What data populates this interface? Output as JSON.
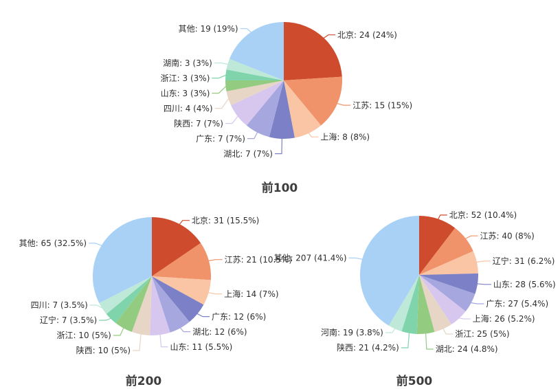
{
  "figure": {
    "background": "#ffffff",
    "label_color": "#2e2e2e",
    "title_color": "#3d3d3d"
  },
  "palette": [
    "#ce4b2d",
    "#f0926a",
    "#f9c5a4",
    "#7b80c7",
    "#a6a7de",
    "#d7c7ee",
    "#e7d5c6",
    "#93cc80",
    "#7fd4ac",
    "#bee9d8",
    "#a8d1f5"
  ],
  "chart_data": [
    {
      "type": "pie",
      "title": "前100",
      "total": 100,
      "label_format": "{name}: {value} ({pct})",
      "legend": false,
      "slices": [
        {
          "name": "北京",
          "value": 24,
          "pct": "24%"
        },
        {
          "name": "江苏",
          "value": 15,
          "pct": "15%"
        },
        {
          "name": "上海",
          "value": 8,
          "pct": "8%"
        },
        {
          "name": "湖北",
          "value": 7,
          "pct": "7%"
        },
        {
          "name": "广东",
          "value": 7,
          "pct": "7%"
        },
        {
          "name": "陕西",
          "value": 7,
          "pct": "7%"
        },
        {
          "name": "四川",
          "value": 4,
          "pct": "4%"
        },
        {
          "name": "山东",
          "value": 3,
          "pct": "3%"
        },
        {
          "name": "浙江",
          "value": 3,
          "pct": "3%"
        },
        {
          "name": "湖南",
          "value": 3,
          "pct": "3%"
        },
        {
          "name": "其他",
          "value": 19,
          "pct": "19%"
        }
      ]
    },
    {
      "type": "pie",
      "title": "前200",
      "total": 200,
      "label_format": "{name}: {value} ({pct})",
      "legend": false,
      "slices": [
        {
          "name": "北京",
          "value": 31,
          "pct": "15.5%"
        },
        {
          "name": "江苏",
          "value": 21,
          "pct": "10.5%"
        },
        {
          "name": "上海",
          "value": 14,
          "pct": "7%"
        },
        {
          "name": "广东",
          "value": 12,
          "pct": "6%"
        },
        {
          "name": "湖北",
          "value": 12,
          "pct": "6%"
        },
        {
          "name": "山东",
          "value": 11,
          "pct": "5.5%"
        },
        {
          "name": "陕西",
          "value": 10,
          "pct": "5%"
        },
        {
          "name": "浙江",
          "value": 10,
          "pct": "5%"
        },
        {
          "name": "辽宁",
          "value": 7,
          "pct": "3.5%"
        },
        {
          "name": "四川",
          "value": 7,
          "pct": "3.5%"
        },
        {
          "name": "其他",
          "value": 65,
          "pct": "32.5%"
        }
      ]
    },
    {
      "type": "pie",
      "title": "前500",
      "total": 500,
      "label_format": "{name}: {value} ({pct})",
      "legend": false,
      "slices": [
        {
          "name": "北京",
          "value": 52,
          "pct": "10.4%"
        },
        {
          "name": "江苏",
          "value": 40,
          "pct": "8%"
        },
        {
          "name": "辽宁",
          "value": 31,
          "pct": "6.2%"
        },
        {
          "name": "山东",
          "value": 28,
          "pct": "5.6%"
        },
        {
          "name": "广东",
          "value": 27,
          "pct": "5.4%"
        },
        {
          "name": "上海",
          "value": 26,
          "pct": "5.2%"
        },
        {
          "name": "浙江",
          "value": 25,
          "pct": "5%"
        },
        {
          "name": "湖北",
          "value": 24,
          "pct": "4.8%"
        },
        {
          "name": "陕西",
          "value": 21,
          "pct": "4.2%"
        },
        {
          "name": "河南",
          "value": 19,
          "pct": "3.8%"
        },
        {
          "name": "其他",
          "value": 207,
          "pct": "41.4%"
        }
      ]
    }
  ],
  "layout_hints": {
    "start_angle": "12-oclock",
    "direction": "clockwise",
    "labels": "outside-with-leader-lines",
    "leader_line_color": "matches-slice",
    "legend_position": "none"
  }
}
